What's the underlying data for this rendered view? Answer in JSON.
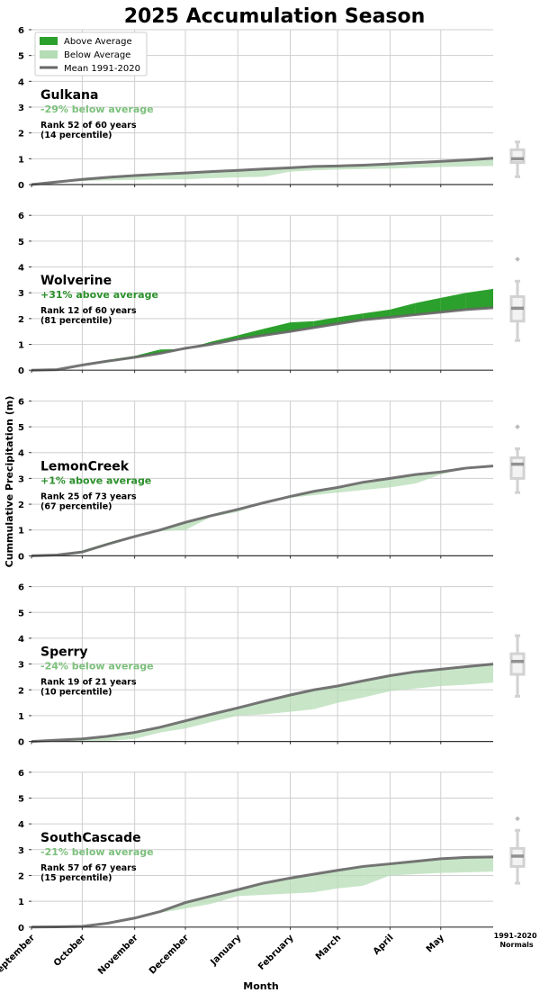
{
  "chart_data": {
    "type": "area",
    "title": "2025 Accumulation Season",
    "xlabel": "Month",
    "ylabel": "Cummulative Precipitation (m)",
    "ylim": [
      0,
      6
    ],
    "yticks": [
      "0",
      "1",
      "2",
      "3",
      "4",
      "5",
      "6"
    ],
    "grid": true,
    "legend": {
      "placement": "top-left",
      "entries": [
        "Above Average",
        "Below Average",
        "Mean 1991-2020"
      ]
    },
    "x_ticks": [
      "September",
      "October",
      "November",
      "December",
      "January",
      "February",
      "March",
      "April",
      "May"
    ],
    "x_tick_days": [
      0,
      30,
      61,
      91,
      122,
      153,
      181,
      212,
      242
    ],
    "x_end_day": 273,
    "normals_label": "1991-2020\nNormals",
    "normals_label_lines": [
      "1991-2020",
      "Normals"
    ],
    "colors": {
      "above": "#2ca02c",
      "below": "#b5dcb5",
      "mean": "#666666",
      "obs": "#1f3d1f",
      "text_above": "#2a8f2a",
      "text_below": "#7cc07c",
      "box": "#bbbbbb"
    },
    "days": [
      0,
      15,
      30,
      45,
      61,
      76,
      91,
      106,
      122,
      137,
      153,
      167,
      181,
      196,
      212,
      227,
      242,
      257,
      273
    ],
    "panels": [
      {
        "name": "Gulkana",
        "anomaly": "-29% below average",
        "sign": "below",
        "rank": "Rank 52 of 60 years",
        "percentile": "(14 percentile)",
        "mean": [
          0,
          0.1,
          0.2,
          0.28,
          0.35,
          0.4,
          0.45,
          0.5,
          0.55,
          0.6,
          0.65,
          0.7,
          0.72,
          0.75,
          0.8,
          0.85,
          0.9,
          0.95,
          1.02
        ],
        "obs": [
          0,
          0.08,
          0.14,
          0.16,
          0.18,
          0.2,
          0.2,
          0.25,
          0.28,
          0.3,
          0.5,
          0.55,
          0.58,
          0.6,
          0.62,
          0.65,
          0.68,
          0.7,
          0.72
        ],
        "normals": {
          "min": 0.3,
          "q1": 0.85,
          "median": 1.0,
          "q3": 1.35,
          "max": 1.65,
          "outliers": []
        }
      },
      {
        "name": "Wolverine",
        "anomaly": "+31% above average",
        "sign": "above",
        "rank": "Rank 12 of 60 years",
        "percentile": "(81 percentile)",
        "mean": [
          0,
          0.02,
          0.2,
          0.35,
          0.5,
          0.65,
          0.85,
          1.0,
          1.2,
          1.35,
          1.5,
          1.65,
          1.8,
          1.95,
          2.05,
          2.15,
          2.25,
          2.35,
          2.42
        ],
        "obs": [
          0,
          0.02,
          0.2,
          0.38,
          0.55,
          0.8,
          0.82,
          1.1,
          1.35,
          1.6,
          1.85,
          1.9,
          2.05,
          2.2,
          2.35,
          2.6,
          2.8,
          3.0,
          3.15
        ],
        "normals": {
          "min": 1.15,
          "q1": 1.9,
          "median": 2.4,
          "q3": 2.85,
          "max": 3.45,
          "outliers": [
            4.3
          ]
        }
      },
      {
        "name": "LemonCreek",
        "anomaly": "+1% above average",
        "sign": "above",
        "rank": "Rank 25 of 73 years",
        "percentile": "(67 percentile)",
        "mean": [
          0,
          0.03,
          0.15,
          0.45,
          0.75,
          1.0,
          1.3,
          1.55,
          1.8,
          2.05,
          2.3,
          2.5,
          2.65,
          2.85,
          3.0,
          3.15,
          3.25,
          3.4,
          3.48
        ],
        "obs": [
          0,
          0.03,
          0.18,
          0.5,
          0.75,
          0.95,
          1.0,
          1.5,
          1.7,
          2.05,
          2.25,
          2.35,
          2.45,
          2.55,
          2.65,
          2.8,
          3.15,
          3.4,
          3.48
        ],
        "normals": {
          "min": 2.45,
          "q1": 3.0,
          "median": 3.55,
          "q3": 3.8,
          "max": 4.15,
          "outliers": [
            5.0
          ]
        }
      },
      {
        "name": "Sperry",
        "anomaly": "-24% below average",
        "sign": "below",
        "rank": "Rank 19 of 21 years",
        "percentile": "(10 percentile)",
        "mean": [
          0,
          0.05,
          0.1,
          0.2,
          0.35,
          0.55,
          0.8,
          1.05,
          1.3,
          1.55,
          1.8,
          2.0,
          2.15,
          2.35,
          2.55,
          2.7,
          2.8,
          2.9,
          3.0
        ],
        "obs": [
          0,
          0,
          0,
          0.02,
          0.1,
          0.35,
          0.5,
          0.75,
          1.0,
          1.05,
          1.15,
          1.25,
          1.5,
          1.7,
          1.95,
          2.05,
          2.15,
          2.2,
          2.28
        ],
        "normals": {
          "min": 1.75,
          "q1": 2.6,
          "median": 3.1,
          "q3": 3.4,
          "max": 4.1,
          "outliers": []
        }
      },
      {
        "name": "SouthCascade",
        "anomaly": "-21% below average",
        "sign": "below",
        "rank": "Rank 57 of 67 years",
        "percentile": "(15 percentile)",
        "mean": [
          0,
          0.01,
          0.03,
          0.15,
          0.35,
          0.6,
          0.95,
          1.2,
          1.45,
          1.7,
          1.9,
          2.05,
          2.2,
          2.35,
          2.45,
          2.55,
          2.65,
          2.7,
          2.72
        ],
        "obs": [
          0,
          0.01,
          0.02,
          0.12,
          0.3,
          0.55,
          0.72,
          0.9,
          1.2,
          1.25,
          1.3,
          1.35,
          1.5,
          1.6,
          2.0,
          2.05,
          2.1,
          2.12,
          2.15
        ],
        "normals": {
          "min": 1.7,
          "q1": 2.35,
          "median": 2.75,
          "q3": 3.05,
          "max": 3.75,
          "outliers": [
            4.2
          ]
        }
      }
    ]
  }
}
